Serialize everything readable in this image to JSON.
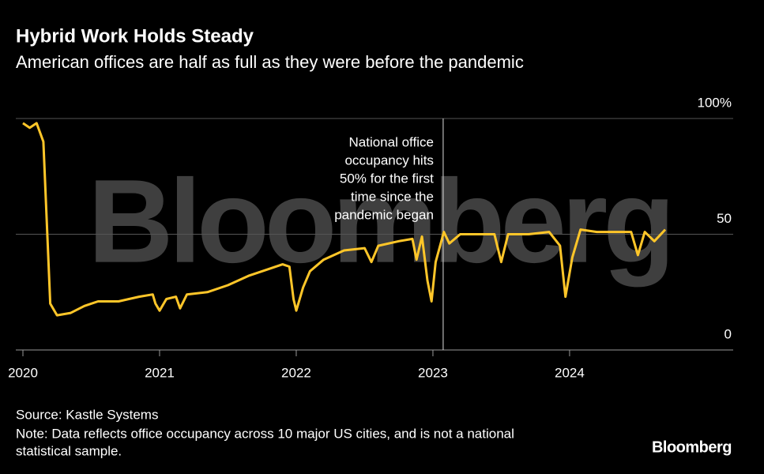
{
  "chart_data": {
    "type": "line",
    "title": "Hybrid Work Holds Steady",
    "subtitle": "American offices are half as full as they were before the pandemic",
    "watermark": "Bloomberg",
    "x": [
      2020.0,
      2020.05,
      2020.1,
      2020.15,
      2020.2,
      2020.25,
      2020.35,
      2020.45,
      2020.55,
      2020.7,
      2020.85,
      2020.95,
      2020.97,
      2021.0,
      2021.05,
      2021.12,
      2021.15,
      2021.2,
      2021.35,
      2021.5,
      2021.65,
      2021.8,
      2021.9,
      2021.95,
      2021.98,
      2022.0,
      2022.05,
      2022.1,
      2022.2,
      2022.35,
      2022.5,
      2022.55,
      2022.6,
      2022.75,
      2022.85,
      2022.88,
      2022.92,
      2022.96,
      2022.99,
      2023.02,
      2023.08,
      2023.12,
      2023.2,
      2023.35,
      2023.45,
      2023.5,
      2023.55,
      2023.7,
      2023.85,
      2023.93,
      2023.97,
      2024.02,
      2024.08,
      2024.2,
      2024.35,
      2024.45,
      2024.5,
      2024.55,
      2024.62,
      2024.7
    ],
    "series": [
      {
        "name": "Office occupancy",
        "color": "#ffc629",
        "values": [
          98,
          96,
          98,
          90,
          20,
          15,
          16,
          19,
          21,
          21,
          23,
          24,
          20,
          17,
          22,
          23,
          18,
          24,
          25,
          28,
          32,
          35,
          37,
          36,
          22,
          17,
          27,
          34,
          39,
          43,
          44,
          38,
          45,
          47,
          48,
          39,
          49,
          30,
          21,
          38,
          51,
          46,
          50,
          50,
          50,
          38,
          50,
          50,
          51,
          45,
          23,
          40,
          52,
          51,
          51,
          51,
          41,
          51,
          47,
          52
        ]
      }
    ],
    "xlim": [
      2019.948,
      2025.197
    ],
    "xticks": [
      2020,
      2021,
      2022,
      2023,
      2024
    ],
    "ylim": [
      0,
      100
    ],
    "yticks": [
      0,
      50,
      {
        "value": 100,
        "label": "100%"
      }
    ],
    "grid": true,
    "annotation": {
      "x": 2023.075,
      "lines": [
        "National office",
        "occupancy hits",
        "50% for the first",
        "time since the",
        "pandemic began"
      ]
    },
    "source": "Source: Kastle Systems",
    "note_lines": [
      "Note: Data reflects office occupancy across 10 major US cities, and is not a national",
      "statistical sample."
    ],
    "logo": "Bloomberg"
  }
}
